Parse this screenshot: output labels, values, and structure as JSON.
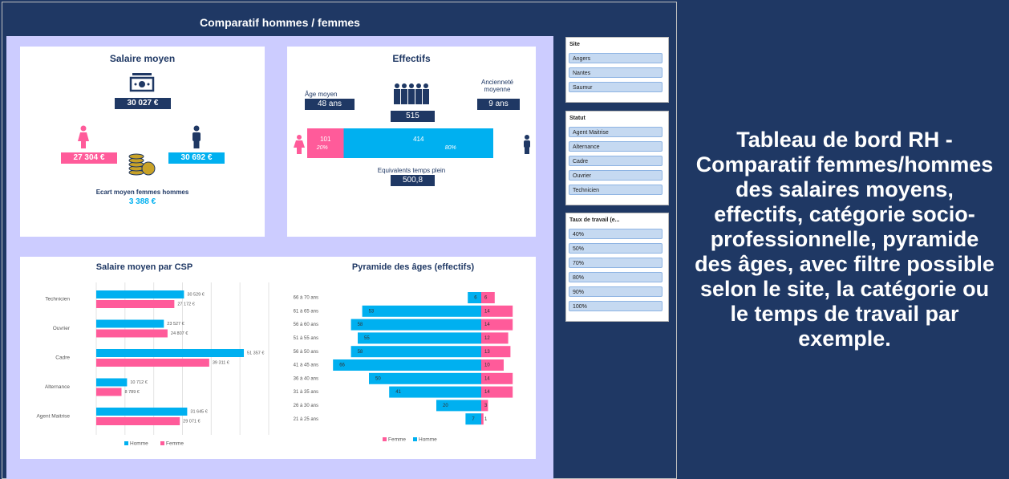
{
  "header": {
    "title": "Comparatif hommes / femmes"
  },
  "salary": {
    "title": "Salaire moyen",
    "average": "30 027 €",
    "women": "27 304 €",
    "men": "30 692 €",
    "gap_label": "Ecart moyen femmes hommes",
    "gap": "3 388 €"
  },
  "headcount": {
    "title": "Effectifs",
    "age_label": "Âge moyen",
    "age": "48 ans",
    "seniority_label": "Ancienneté moyenne",
    "seniority": "9 ans",
    "total": "515",
    "split": {
      "values": [
        101,
        414
      ],
      "shares": [
        "20%",
        "80%"
      ],
      "colors": [
        "#ff5b9a",
        "#00b0f0"
      ]
    },
    "fte_label": "Equivalents temps plein",
    "fte": "500,8"
  },
  "chart_data": [
    {
      "type": "hbar",
      "title": "Salaire moyen par CSP",
      "categories": [
        "Technicien",
        "Ouvrier",
        "Cadre",
        "Alternance",
        "Agent Maitrise"
      ],
      "series": [
        {
          "name": "Homme",
          "color": "#00b0f0",
          "values": [
            30529,
            23527,
            51357,
            10712,
            31645
          ],
          "value_labels": [
            "30 529 €",
            "23 527 €",
            "51 357 €",
            "10 712 €",
            "31 645 €"
          ]
        },
        {
          "name": "Femme",
          "color": "#ff5b9a",
          "values": [
            27172,
            24807,
            39311,
            8789,
            29071
          ],
          "value_labels": [
            "27 172 €",
            "24 807 €",
            "39 311 €",
            "8 789 €",
            "29 071 €"
          ]
        }
      ],
      "xlim": [
        0,
        60000
      ],
      "xticks": [
        0,
        10000,
        20000,
        30000,
        40000,
        50000,
        60000
      ],
      "grid": true
    },
    {
      "type": "pyramid",
      "title": "Pyramide des âges (effectifs)",
      "categories": [
        "66 à 70 ans",
        "61 à 65 ans",
        "56 à 60 ans",
        "51 à 55 ans",
        "56 à 50 ans",
        "41 à 45 ans",
        "36 à 40 ans",
        "31 à 35 ans",
        "26 à 30 ans",
        "21 à 25 ans"
      ],
      "series": [
        {
          "name": "Femme",
          "color": "#ff5b9a",
          "values": [
            6,
            14,
            14,
            12,
            13,
            10,
            14,
            14,
            3,
            1
          ]
        },
        {
          "name": "Homme",
          "color": "#00b0f0",
          "values": [
            6,
            53,
            58,
            55,
            58,
            66,
            50,
            41,
            20,
            7
          ]
        }
      ],
      "xlim": [
        0,
        70
      ]
    }
  ],
  "slicers": [
    {
      "title": "Site",
      "items": [
        "Angers",
        "Nantes",
        "Saumur"
      ]
    },
    {
      "title": "Statut",
      "items": [
        "Agent Maitrise",
        "Alternance",
        "Cadre",
        "Ouvrier",
        "Technicien"
      ]
    },
    {
      "title": "Taux de travail (e...",
      "items": [
        "40%",
        "50%",
        "70%",
        "80%",
        "90%",
        "100%"
      ]
    }
  ],
  "description": "Tableau de bord RH - Comparatif femmes/hommes des salaires moyens, effectifs, catégorie socio-professionnelle, pyramide des âges, avec filtre possible selon le site, la catégorie ou le temps de travail par exemple."
}
